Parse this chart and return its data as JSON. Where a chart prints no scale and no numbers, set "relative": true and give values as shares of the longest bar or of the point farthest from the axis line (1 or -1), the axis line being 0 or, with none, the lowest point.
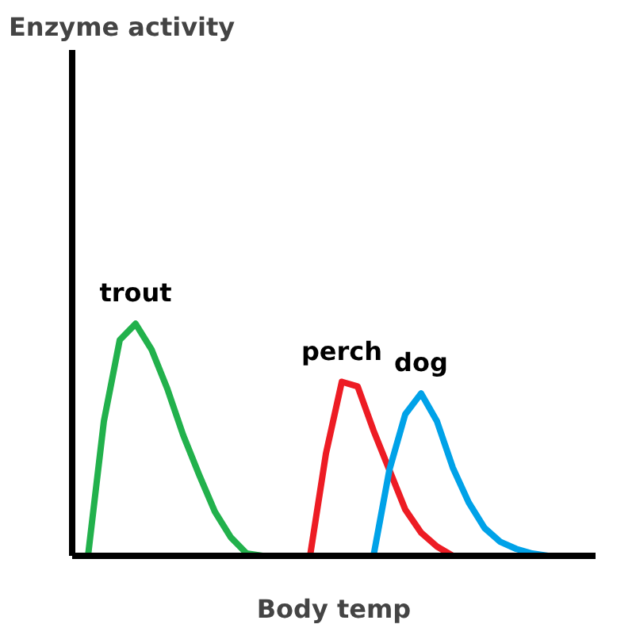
{
  "chart_data": {
    "type": "line",
    "relative": true,
    "title": "Enzyme activity",
    "xlabel": "Body temp",
    "categories": [
      null,
      null,
      null,
      null,
      null,
      null,
      null,
      null,
      null,
      null,
      null,
      null,
      null,
      null,
      null,
      null,
      null,
      null,
      null,
      null,
      null,
      null,
      null,
      null,
      null,
      null,
      null,
      null,
      null,
      null,
      null,
      null,
      null,
      null
    ],
    "series": [
      {
        "name": "trout",
        "color": "#22b14c",
        "values": [
          null,
          0,
          0.58,
          0.93,
          1,
          0.89,
          0.72,
          0.52,
          0.35,
          0.19,
          0.08,
          0.01,
          0,
          null,
          null,
          null,
          null,
          null,
          null,
          null,
          null,
          null,
          null,
          null,
          null,
          null,
          null,
          null,
          null,
          null,
          null,
          null,
          null,
          null
        ]
      },
      {
        "name": "perch",
        "color": "#ed1c24",
        "values": [
          null,
          null,
          null,
          null,
          null,
          null,
          null,
          null,
          null,
          null,
          null,
          null,
          null,
          null,
          null,
          0,
          0.44,
          0.75,
          0.73,
          0.54,
          0.37,
          0.2,
          0.1,
          0.04,
          0,
          null,
          null,
          null,
          null,
          null,
          null,
          null,
          null,
          null
        ]
      },
      {
        "name": "dog",
        "color": "#00a2e8",
        "values": [
          null,
          null,
          null,
          null,
          null,
          null,
          null,
          null,
          null,
          null,
          null,
          null,
          null,
          null,
          null,
          null,
          null,
          null,
          null,
          0,
          0.37,
          0.61,
          0.7,
          0.58,
          0.38,
          0.23,
          0.12,
          0.06,
          0.03,
          0.01,
          0,
          null,
          null,
          null
        ]
      }
    ],
    "grid": false,
    "marker": "none",
    "line_style": "solid"
  }
}
